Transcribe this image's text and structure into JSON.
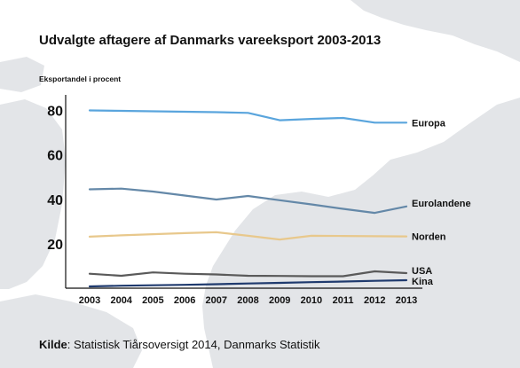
{
  "header": {
    "title": "Udvalgte aftagere af Danmarks vareeksport 2003-2013",
    "y_axis_label": "Eksportandel i procent"
  },
  "footer": {
    "source_label": "Kilde",
    "source_text": ": Statistisk Tiårsoversigt 2014, Danmarks Statistik"
  },
  "chart_data": {
    "type": "line",
    "title": "Udvalgte aftagere af Danmarks vareeksport 2003-2013",
    "ylabel": "Eksportandel i procent",
    "xlabel": "",
    "categories": [
      "2003",
      "2004",
      "2005",
      "2006",
      "2007",
      "2008",
      "2009",
      "2010",
      "2011",
      "2012",
      "2013"
    ],
    "ylim": [
      0,
      85
    ],
    "yticks": [
      20,
      40,
      60,
      80
    ],
    "grid": false,
    "legend": "inline labels at right end of each line",
    "series": [
      {
        "name": "Europa",
        "color": "#5aa5dd",
        "values": [
          80.0,
          79.8,
          79.6,
          79.4,
          79.2,
          78.9,
          75.6,
          76.2,
          76.6,
          74.5,
          74.5
        ]
      },
      {
        "name": "Eurolandene",
        "color": "#6488a8",
        "values": [
          44.5,
          44.8,
          43.5,
          41.7,
          39.9,
          41.5,
          39.6,
          37.7,
          35.7,
          33.9,
          36.8
        ]
      },
      {
        "name": "Norden",
        "color": "#e8c88c",
        "values": [
          23.2,
          23.8,
          24.3,
          24.8,
          25.2,
          23.6,
          21.9,
          23.6,
          23.5,
          23.4,
          23.3
        ]
      },
      {
        "name": "USA",
        "color": "#5a5a5a",
        "values": [
          6.5,
          5.6,
          7.1,
          6.5,
          6.2,
          5.6,
          5.5,
          5.4,
          5.4,
          7.6,
          6.8
        ]
      },
      {
        "name": "Kina",
        "color": "#1f3a6e",
        "values": [
          0.8,
          1.1,
          1.3,
          1.5,
          1.8,
          2.1,
          2.4,
          2.7,
          3.0,
          3.3,
          3.6
        ]
      }
    ]
  }
}
